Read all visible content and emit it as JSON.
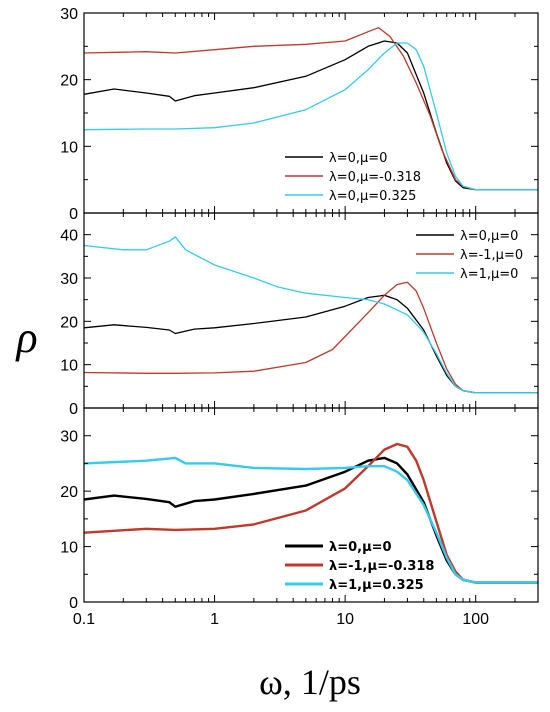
{
  "chart_data": {
    "type": "line",
    "xlabel": "ω, 1/ps",
    "ylabel": "ρ",
    "xscale": "log",
    "xlim": [
      0.1,
      300
    ],
    "x_ticks": [
      "0.1",
      "1",
      "10",
      "100"
    ],
    "grid": false,
    "panels": [
      {
        "ylim": [
          0,
          30
        ],
        "y_ticks": [
          "0",
          "10",
          "20",
          "30"
        ],
        "legend_position": "bottom-right",
        "series": [
          {
            "name": "λ=0,μ=0",
            "color": "#000000",
            "x": [
              0.1,
              0.17,
              0.3,
              0.45,
              0.5,
              0.7,
              1,
              2,
              5,
              10,
              15,
              20,
              25,
              30,
              40,
              50,
              60,
              70,
              80,
              100,
              150,
              300
            ],
            "y": [
              17.8,
              18.6,
              18.0,
              17.5,
              16.8,
              17.6,
              18.0,
              18.8,
              20.5,
              23.0,
              25.0,
              25.8,
              25.5,
              24.0,
              18.0,
              12.0,
              7.5,
              4.8,
              3.8,
              3.5,
              3.5,
              3.5
            ]
          },
          {
            "name": "λ=0,μ=-0.318",
            "color": "#c0392b",
            "x": [
              0.1,
              0.3,
              0.5,
              1,
              2,
              5,
              10,
              15,
              18,
              22,
              28,
              35,
              45,
              55,
              70,
              80,
              100,
              150,
              300
            ],
            "y": [
              24.0,
              24.2,
              24.0,
              24.5,
              25.0,
              25.3,
              25.8,
              27.2,
              27.8,
              26.5,
              23.5,
              19.5,
              14.5,
              9.5,
              5.0,
              4.0,
              3.5,
              3.5,
              3.5
            ]
          },
          {
            "name": "λ=0,μ=0.325",
            "color": "#33ccee",
            "x": [
              0.1,
              0.3,
              0.5,
              1,
              2,
              5,
              10,
              15,
              20,
              25,
              30,
              35,
              40,
              50,
              60,
              70,
              80,
              100,
              150,
              300
            ],
            "y": [
              12.5,
              12.6,
              12.6,
              12.8,
              13.5,
              15.5,
              18.5,
              21.5,
              24.0,
              25.5,
              25.5,
              24.5,
              22.0,
              15.0,
              9.0,
              5.5,
              4.0,
              3.5,
              3.5,
              3.5
            ]
          }
        ]
      },
      {
        "ylim": [
          0,
          45
        ],
        "y_ticks": [
          "0",
          "10",
          "20",
          "30",
          "40"
        ],
        "legend_position": "top-right",
        "series": [
          {
            "name": "λ=0,μ=0",
            "color": "#000000",
            "x": [
              0.1,
              0.17,
              0.3,
              0.45,
              0.5,
              0.7,
              1,
              2,
              5,
              10,
              15,
              20,
              25,
              30,
              40,
              50,
              60,
              70,
              80,
              100,
              150,
              300
            ],
            "y": [
              18.5,
              19.2,
              18.6,
              18.0,
              17.2,
              18.2,
              18.5,
              19.5,
              21.0,
              23.5,
              25.5,
              26.0,
              25.0,
              23.0,
              18.0,
              12.0,
              7.5,
              5.0,
              4.0,
              3.5,
              3.5,
              3.5
            ]
          },
          {
            "name": "λ=-1,μ=0",
            "color": "#c0392b",
            "x": [
              0.1,
              0.3,
              0.5,
              1,
              2,
              5,
              8,
              10,
              15,
              20,
              25,
              30,
              35,
              40,
              50,
              60,
              70,
              80,
              100,
              150,
              300
            ],
            "y": [
              8.2,
              8.0,
              8.0,
              8.1,
              8.5,
              10.5,
              13.5,
              16.5,
              22.0,
              26.0,
              28.5,
              29.0,
              27.0,
              23.0,
              15.0,
              9.0,
              5.5,
              4.0,
              3.5,
              3.5,
              3.5
            ]
          },
          {
            "name": "λ=1,μ=0",
            "color": "#33ccee",
            "x": [
              0.1,
              0.2,
              0.3,
              0.45,
              0.5,
              0.6,
              1,
              2,
              3,
              5,
              10,
              15,
              20,
              30,
              40,
              50,
              60,
              70,
              80,
              100,
              150,
              300
            ],
            "y": [
              37.5,
              36.5,
              36.5,
              38.5,
              39.5,
              36.5,
              33.0,
              30.0,
              28.0,
              26.5,
              25.5,
              25.0,
              24.0,
              21.5,
              17.5,
              12.5,
              8.0,
              5.0,
              4.0,
              3.5,
              3.5,
              3.5
            ]
          }
        ]
      },
      {
        "ylim": [
          0,
          35
        ],
        "y_ticks": [
          "0",
          "10",
          "20",
          "30"
        ],
        "legend_position": "bottom-right",
        "series": [
          {
            "name": "λ=0,μ=0",
            "color": "#000000",
            "x": [
              0.1,
              0.17,
              0.3,
              0.45,
              0.5,
              0.7,
              1,
              2,
              5,
              10,
              15,
              20,
              25,
              30,
              40,
              50,
              60,
              70,
              80,
              100,
              150,
              300
            ],
            "y": [
              18.5,
              19.2,
              18.6,
              18.0,
              17.2,
              18.2,
              18.5,
              19.5,
              21.0,
              23.5,
              25.5,
              26.0,
              25.0,
              23.0,
              18.0,
              12.0,
              7.5,
              5.0,
              4.0,
              3.5,
              3.5,
              3.5
            ]
          },
          {
            "name": "λ=-1,μ=-0.318",
            "color": "#c0392b",
            "x": [
              0.1,
              0.3,
              0.5,
              1,
              2,
              5,
              10,
              15,
              20,
              25,
              30,
              35,
              40,
              50,
              60,
              70,
              80,
              100,
              150,
              300
            ],
            "y": [
              12.5,
              13.2,
              13.0,
              13.2,
              14.0,
              16.5,
              20.5,
              24.5,
              27.5,
              28.5,
              28.0,
              25.5,
              22.0,
              14.5,
              8.5,
              5.5,
              4.0,
              3.5,
              3.5,
              3.5
            ]
          },
          {
            "name": "λ=1,μ=0.325",
            "color": "#33ccee",
            "x": [
              0.1,
              0.3,
              0.5,
              0.6,
              1,
              2,
              5,
              10,
              15,
              20,
              25,
              30,
              40,
              50,
              60,
              70,
              80,
              100,
              150,
              300
            ],
            "y": [
              25.0,
              25.5,
              26.0,
              25.0,
              25.0,
              24.2,
              24.0,
              24.2,
              24.5,
              24.5,
              23.5,
              22.0,
              17.5,
              12.5,
              8.0,
              5.0,
              4.0,
              3.5,
              3.5,
              3.5
            ]
          }
        ]
      }
    ]
  }
}
